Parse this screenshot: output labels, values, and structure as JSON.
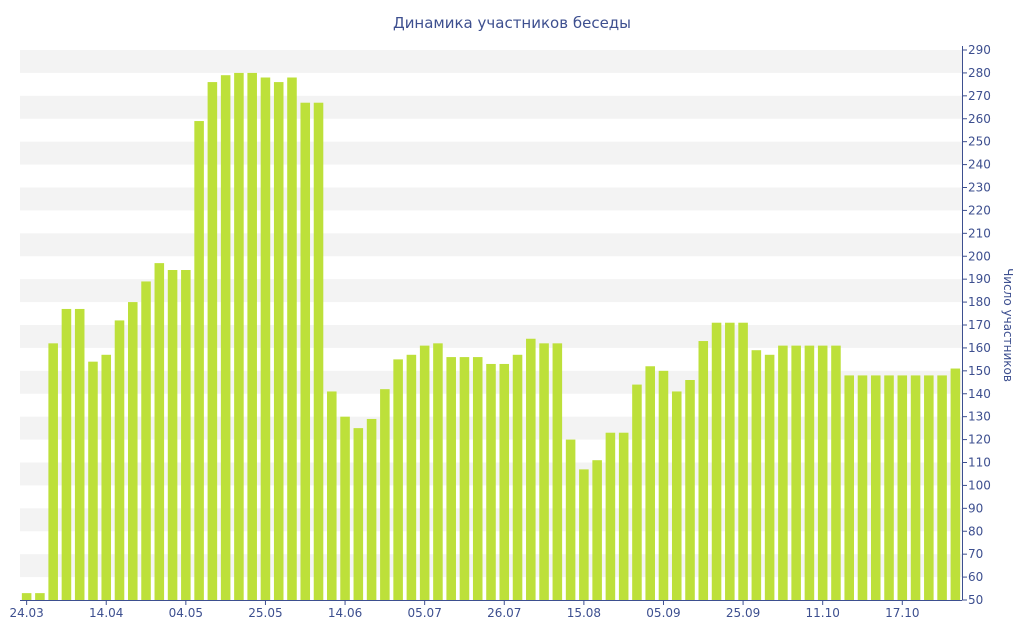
{
  "chart_data": {
    "type": "bar",
    "title": "Динамика участников беседы",
    "xlabel": "",
    "ylabel": "Число участников",
    "ylim": [
      50,
      290
    ],
    "y_ticks": [
      50,
      60,
      70,
      80,
      90,
      100,
      110,
      120,
      130,
      140,
      150,
      160,
      170,
      180,
      190,
      200,
      210,
      220,
      230,
      240,
      250,
      260,
      270,
      280,
      290
    ],
    "y_axis_side": "right",
    "grid": "alternating horizontal bands",
    "bar_color": "#bde03a",
    "band_color": "#f3f3f3",
    "text_color": "#3d4f8f",
    "x_tick_labels": [
      {
        "index": 0,
        "label": "24.03"
      },
      {
        "index": 6,
        "label": "14.04"
      },
      {
        "index": 12,
        "label": "04.05"
      },
      {
        "index": 18,
        "label": "25.05"
      },
      {
        "index": 24,
        "label": "14.06"
      },
      {
        "index": 30,
        "label": "05.07"
      },
      {
        "index": 36,
        "label": "26.07"
      },
      {
        "index": 42,
        "label": "15.08"
      },
      {
        "index": 48,
        "label": "05.09"
      },
      {
        "index": 54,
        "label": "25.09"
      },
      {
        "index": 60,
        "label": "11.10"
      },
      {
        "index": 66,
        "label": "17.10"
      }
    ],
    "values": [
      53,
      53,
      162,
      177,
      177,
      154,
      157,
      172,
      180,
      189,
      197,
      194,
      194,
      259,
      276,
      279,
      280,
      280,
      278,
      276,
      278,
      267,
      267,
      141,
      130,
      125,
      129,
      142,
      155,
      157,
      161,
      162,
      156,
      156,
      156,
      153,
      153,
      157,
      164,
      162,
      162,
      120,
      107,
      111,
      123,
      123,
      144,
      152,
      150,
      141,
      146,
      163,
      171,
      171,
      171,
      159,
      157,
      161,
      161,
      161,
      161,
      161,
      148,
      148,
      148,
      148,
      148,
      148,
      148,
      148,
      151
    ]
  }
}
